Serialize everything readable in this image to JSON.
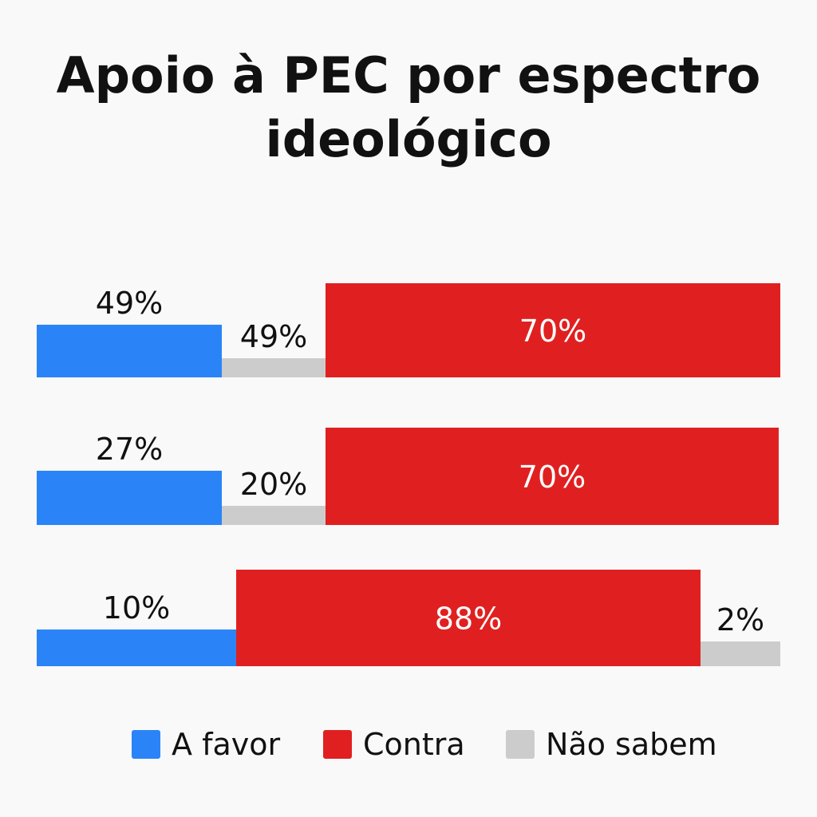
{
  "chart_data": {
    "type": "bar",
    "orientation": "horizontal",
    "stacked": true,
    "title": "Apoio à PEC por espectro ideológico",
    "categories": [
      "",
      "",
      ""
    ],
    "series": [
      {
        "name": "A favor",
        "color": "#2b84f7",
        "values": [
          49,
          27,
          10
        ],
        "labels": [
          "49%",
          "27%",
          "10%"
        ]
      },
      {
        "name": "Não sabem",
        "color": "#cccccc",
        "values": [
          49,
          20,
          2
        ],
        "labels": [
          "49%",
          "20%",
          "2%"
        ]
      },
      {
        "name": "Contra",
        "color": "#e02020",
        "values": [
          70,
          70,
          88
        ],
        "labels": [
          "70%",
          "70%",
          "88%"
        ]
      }
    ],
    "stack_order": [
      [
        "A favor",
        "Não sabem",
        "Contra"
      ],
      [
        "A favor",
        "Não sabem",
        "Contra"
      ],
      [
        "A favor",
        "Contra",
        "Não sabem"
      ]
    ],
    "legend": {
      "position": "bottom",
      "entries": [
        {
          "label": "A favor",
          "color": "#2b84f7"
        },
        {
          "label": "Contra",
          "color": "#e02020"
        },
        {
          "label": "Não sabem",
          "color": "#cccccc"
        }
      ]
    },
    "grid": false
  }
}
